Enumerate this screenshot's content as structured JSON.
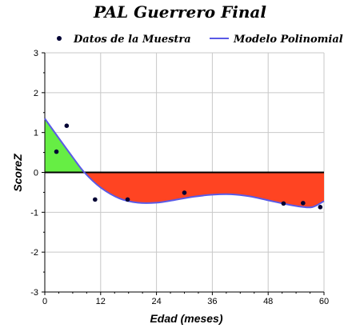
{
  "chart_data": {
    "type": "line",
    "title": "PAL Guerrero Final",
    "xlabel": "Edad (meses)",
    "ylabel": "ScoreZ",
    "xlim": [
      0,
      60
    ],
    "ylim": [
      -3,
      3
    ],
    "x_ticks": [
      0,
      12,
      24,
      36,
      48,
      60
    ],
    "y_ticks": [
      -3,
      -2,
      -1,
      0,
      1,
      2,
      3
    ],
    "grid": true,
    "legend_position": "top",
    "colors": {
      "points": "#000033",
      "model_line": "#5a5ae6",
      "positive_fill": "#66ee44",
      "negative_fill": "#ff4422",
      "zero_line": "#000000",
      "grid": "#c8c8c8"
    },
    "series": [
      {
        "name": "Datos de la Muestra",
        "kind": "scatter",
        "points": [
          {
            "x": 2.5,
            "y": 0.52
          },
          {
            "x": 4.7,
            "y": 1.17
          },
          {
            "x": 10.8,
            "y": -0.68
          },
          {
            "x": 17.8,
            "y": -0.68
          },
          {
            "x": 30.0,
            "y": -0.51
          },
          {
            "x": 51.3,
            "y": -0.78
          },
          {
            "x": 55.5,
            "y": -0.77
          },
          {
            "x": 59.2,
            "y": -0.87
          }
        ]
      },
      {
        "name": "Modelo Polinomial",
        "kind": "line",
        "points": [
          {
            "x": 0,
            "y": 1.35
          },
          {
            "x": 3,
            "y": 0.86
          },
          {
            "x": 6,
            "y": 0.38
          },
          {
            "x": 8.5,
            "y": 0.0
          },
          {
            "x": 12,
            "y": -0.38
          },
          {
            "x": 16,
            "y": -0.65
          },
          {
            "x": 20,
            "y": -0.76
          },
          {
            "x": 24,
            "y": -0.76
          },
          {
            "x": 28,
            "y": -0.69
          },
          {
            "x": 32,
            "y": -0.61
          },
          {
            "x": 36,
            "y": -0.56
          },
          {
            "x": 40,
            "y": -0.55
          },
          {
            "x": 44,
            "y": -0.6
          },
          {
            "x": 48,
            "y": -0.7
          },
          {
            "x": 52,
            "y": -0.8
          },
          {
            "x": 55,
            "y": -0.86
          },
          {
            "x": 57.5,
            "y": -0.87
          },
          {
            "x": 60,
            "y": -0.72
          }
        ]
      }
    ]
  }
}
